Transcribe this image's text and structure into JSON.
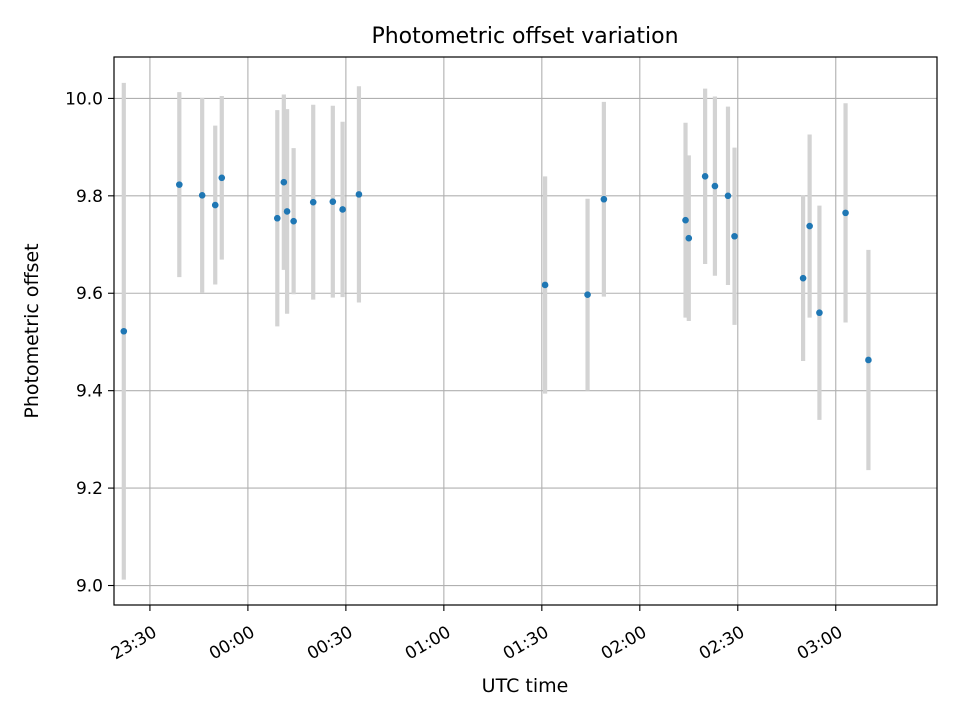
{
  "chart_data": {
    "type": "scatter",
    "title": "Photometric offset variation",
    "xlabel": "UTC time",
    "ylabel": "Photometric offset",
    "grid": true,
    "x_axis_type": "time",
    "x_ticks": [
      "23:30",
      "00:00",
      "00:30",
      "01:00",
      "01:30",
      "02:00",
      "02:30",
      "03:00"
    ],
    "y_ticks": [
      "9.0",
      "9.2",
      "9.4",
      "9.6",
      "9.8",
      "10.0"
    ],
    "ylim": [
      8.96,
      10.085
    ],
    "xlim": [
      "23:19",
      "03:31"
    ],
    "colors": {
      "marker": "#1f77b4",
      "errorbar": "#d3d3d3",
      "grid": "#b0b0b0"
    },
    "series": [
      {
        "points": [
          {
            "x": "23:22",
            "y": 9.522,
            "err": 0.51
          },
          {
            "x": "23:39",
            "y": 9.823,
            "err": 0.19
          },
          {
            "x": "23:46",
            "y": 9.801,
            "err": 0.2
          },
          {
            "x": "23:50",
            "y": 9.781,
            "err": 0.163
          },
          {
            "x": "23:52",
            "y": 9.837,
            "err": 0.168
          },
          {
            "x": "00:09",
            "y": 9.754,
            "err": 0.222
          },
          {
            "x": "00:11",
            "y": 9.828,
            "err": 0.18
          },
          {
            "x": "00:12",
            "y": 9.768,
            "err": 0.21
          },
          {
            "x": "00:14",
            "y": 9.748,
            "err": 0.15
          },
          {
            "x": "00:20",
            "y": 9.787,
            "err": 0.2
          },
          {
            "x": "00:26",
            "y": 9.788,
            "err": 0.197
          },
          {
            "x": "00:29",
            "y": 9.772,
            "err": 0.18
          },
          {
            "x": "00:34",
            "y": 9.803,
            "err": 0.222
          },
          {
            "x": "01:31",
            "y": 9.617,
            "err": 0.223
          },
          {
            "x": "01:44",
            "y": 9.597,
            "err": 0.197
          },
          {
            "x": "01:49",
            "y": 9.793,
            "err": 0.2
          },
          {
            "x": "02:14",
            "y": 9.75,
            "err": 0.2
          },
          {
            "x": "02:15",
            "y": 9.713,
            "err": 0.17
          },
          {
            "x": "02:20",
            "y": 9.84,
            "err": 0.18
          },
          {
            "x": "02:23",
            "y": 9.82,
            "err": 0.184
          },
          {
            "x": "02:27",
            "y": 9.8,
            "err": 0.183
          },
          {
            "x": "02:29",
            "y": 9.717,
            "err": 0.182
          },
          {
            "x": "02:50",
            "y": 9.631,
            "err": 0.17
          },
          {
            "x": "02:52",
            "y": 9.738,
            "err": 0.188
          },
          {
            "x": "02:55",
            "y": 9.56,
            "err": 0.22
          },
          {
            "x": "03:03",
            "y": 9.765,
            "err": 0.225
          },
          {
            "x": "03:10",
            "y": 9.463,
            "err": 0.226
          }
        ]
      }
    ]
  }
}
